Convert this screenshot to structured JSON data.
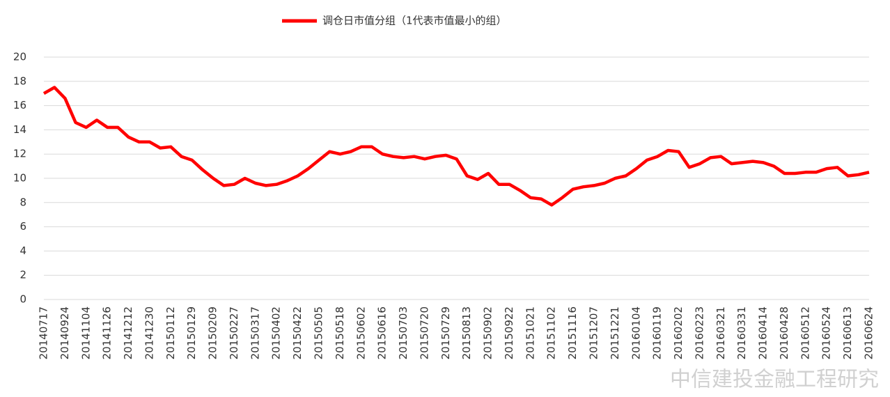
{
  "chart_data": {
    "type": "line",
    "categories": [
      "20140717",
      null,
      "20140924",
      null,
      "20141104",
      null,
      "20141126",
      null,
      "20141212",
      null,
      "20141230",
      null,
      "20150112",
      null,
      "20150129",
      null,
      "20150209",
      null,
      "20150227",
      null,
      "20150317",
      null,
      "20150402",
      null,
      "20150422",
      null,
      "20150505",
      null,
      "20150518",
      null,
      "20150602",
      null,
      "20150616",
      null,
      "20150703",
      null,
      "20150720",
      null,
      "20150729",
      null,
      "20150813",
      null,
      "20150902",
      null,
      "20150922",
      null,
      "20151021",
      null,
      "20151102",
      null,
      "20151116",
      null,
      "20151207",
      null,
      "20151221",
      null,
      "20160104",
      null,
      "20160119",
      null,
      "20160202",
      null,
      "20160223",
      null,
      "20160321",
      null,
      "20160331",
      null,
      "20160414",
      null,
      "20160428",
      null,
      "20160512",
      null,
      "20160524",
      null,
      "20160613",
      null,
      "20160624"
    ],
    "series": [
      {
        "name": "调仓日市值分组（1代表市值最小的组）",
        "color": "#ff0000",
        "values": [
          17.0,
          17.5,
          16.6,
          14.6,
          14.2,
          14.8,
          14.2,
          14.2,
          13.4,
          13.0,
          13.0,
          12.5,
          12.6,
          11.8,
          11.5,
          10.7,
          10.0,
          9.4,
          9.5,
          10.0,
          9.6,
          9.4,
          9.5,
          9.8,
          10.2,
          10.8,
          11.5,
          12.2,
          12.0,
          12.2,
          12.6,
          12.6,
          12.0,
          11.8,
          11.7,
          11.8,
          11.6,
          11.8,
          11.9,
          11.6,
          10.2,
          9.9,
          10.4,
          9.5,
          9.5,
          9.0,
          8.4,
          8.3,
          7.8,
          8.4,
          9.1,
          9.3,
          9.4,
          9.6,
          10.0,
          10.2,
          10.8,
          11.5,
          11.8,
          12.3,
          12.2,
          10.9,
          11.2,
          11.7,
          11.8,
          11.2,
          11.3,
          11.4,
          11.3,
          11.0,
          10.4,
          10.4,
          10.5,
          10.5,
          10.8,
          10.9,
          10.2,
          10.3,
          10.5
        ]
      }
    ],
    "ylim": [
      0,
      20
    ],
    "yticks": [
      0,
      2,
      4,
      6,
      8,
      10,
      12,
      14,
      16,
      18,
      20
    ],
    "grid": true,
    "legend": "top",
    "watermark": "中信建投金融工程研究"
  }
}
